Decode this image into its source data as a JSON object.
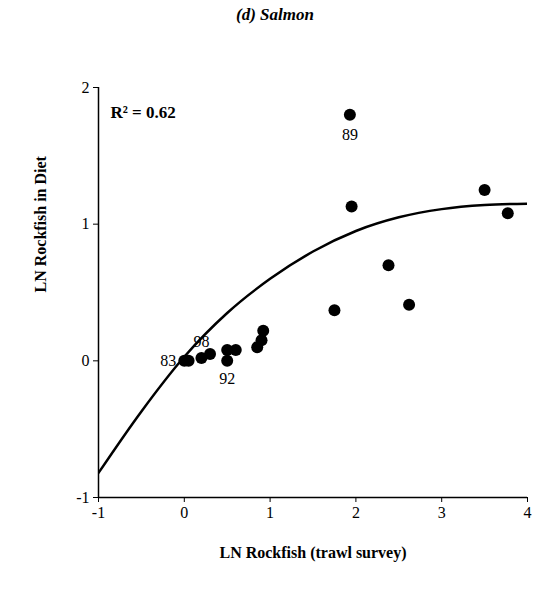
{
  "chart_data": {
    "type": "scatter",
    "title": "(d) Salmon",
    "x_label": "LN Rockfish (trawl survey)",
    "y_label": "LN Rockfish in Diet",
    "annotation": "R² = 0.62",
    "xlim": [
      -1,
      4
    ],
    "xticks": [
      -1,
      0,
      1,
      2,
      3,
      4
    ],
    "ylim": [
      -1,
      2
    ],
    "yticks": [
      -1,
      0,
      1,
      2
    ],
    "grid": false,
    "series": [
      {
        "type": "scatter",
        "color": "#000000",
        "marker": "circle",
        "x": [
          0.0,
          0.05,
          0.2,
          0.3,
          0.5,
          0.5,
          0.6,
          0.85,
          0.9,
          0.92,
          1.75,
          1.93,
          1.95,
          2.38,
          2.62,
          3.5,
          3.77
        ],
        "values": [
          0.0,
          0.0,
          0.02,
          0.05,
          0.08,
          0.0,
          0.08,
          0.1,
          0.15,
          0.22,
          0.37,
          1.8,
          1.13,
          0.7,
          0.41,
          1.25,
          1.08
        ],
        "labels": [
          "83",
          null,
          "98",
          null,
          null,
          "92",
          null,
          null,
          null,
          null,
          null,
          "89",
          null,
          null,
          null,
          null,
          null
        ]
      },
      {
        "type": "line",
        "color": "#000000",
        "line_style": "solid",
        "x": [
          -1,
          -0.5,
          0,
          0.5,
          1,
          1.5,
          2,
          2.5,
          3,
          3.5,
          4
        ],
        "values": [
          -0.82,
          -0.37,
          0.03,
          0.35,
          0.6,
          0.8,
          0.95,
          1.05,
          1.11,
          1.14,
          1.15
        ]
      }
    ]
  }
}
